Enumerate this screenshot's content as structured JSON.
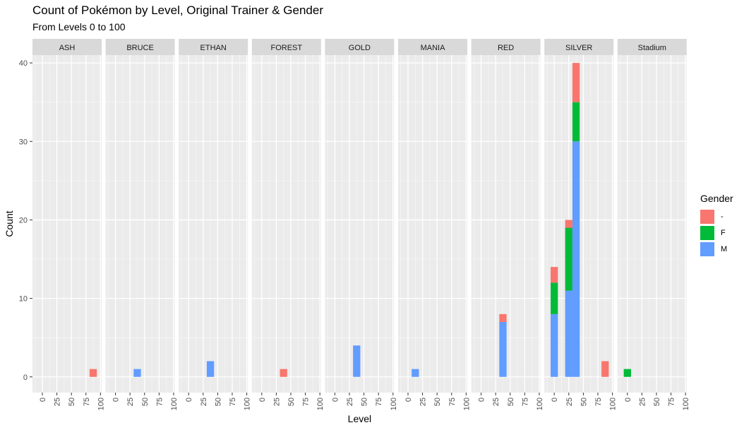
{
  "chart_data": {
    "type": "bar",
    "stacked": true,
    "faceted": true,
    "title": "Count of Pokémon by Level, Original Trainer & Gender",
    "subtitle": "From Levels 0 to 100",
    "xlabel": "Level",
    "ylabel": "Count",
    "xlim": [
      -17,
      102
    ],
    "ylim": [
      -2,
      41
    ],
    "xticks": [
      0,
      25,
      50,
      75,
      100
    ],
    "yticks": [
      0,
      10,
      20,
      30,
      40
    ],
    "grid": true,
    "bin_width": 12.5,
    "facets": [
      "ASH",
      "BRUCE",
      "ETHAN",
      "FOREST",
      "GOLD",
      "MANIA",
      "RED",
      "SILVER",
      "Stadium"
    ],
    "legend": {
      "title": "Gender",
      "placement": "right",
      "entries": [
        {
          "label": "-",
          "color": "#F8766D"
        },
        {
          "label": "F",
          "color": "#00BA38"
        },
        {
          "label": "M",
          "color": "#619CFF"
        }
      ]
    },
    "bars": [
      {
        "facet": "ASH",
        "x": 87.5,
        "gender": "-",
        "count": 1
      },
      {
        "facet": "BRUCE",
        "x": 37.5,
        "gender": "M",
        "count": 1
      },
      {
        "facet": "ETHAN",
        "x": 37.5,
        "gender": "M",
        "count": 2
      },
      {
        "facet": "FOREST",
        "x": 37.5,
        "gender": "-",
        "count": 1
      },
      {
        "facet": "GOLD",
        "x": 37.5,
        "gender": "M",
        "count": 4
      },
      {
        "facet": "MANIA",
        "x": 12.5,
        "gender": "M",
        "count": 1
      },
      {
        "facet": "RED",
        "x": 37.5,
        "gender": "M",
        "count": 7
      },
      {
        "facet": "RED",
        "x": 37.5,
        "gender": "-",
        "count": 1
      },
      {
        "facet": "SILVER",
        "x": 0,
        "gender": "M",
        "count": 8
      },
      {
        "facet": "SILVER",
        "x": 0,
        "gender": "F",
        "count": 4
      },
      {
        "facet": "SILVER",
        "x": 0,
        "gender": "-",
        "count": 2
      },
      {
        "facet": "SILVER",
        "x": 25,
        "gender": "M",
        "count": 11
      },
      {
        "facet": "SILVER",
        "x": 25,
        "gender": "F",
        "count": 8
      },
      {
        "facet": "SILVER",
        "x": 25,
        "gender": "-",
        "count": 1
      },
      {
        "facet": "SILVER",
        "x": 37.5,
        "gender": "M",
        "count": 30
      },
      {
        "facet": "SILVER",
        "x": 37.5,
        "gender": "F",
        "count": 5
      },
      {
        "facet": "SILVER",
        "x": 37.5,
        "gender": "-",
        "count": 5
      },
      {
        "facet": "SILVER",
        "x": 87.5,
        "gender": "-",
        "count": 2
      },
      {
        "facet": "Stadium",
        "x": 0,
        "gender": "F",
        "count": 1
      }
    ]
  }
}
